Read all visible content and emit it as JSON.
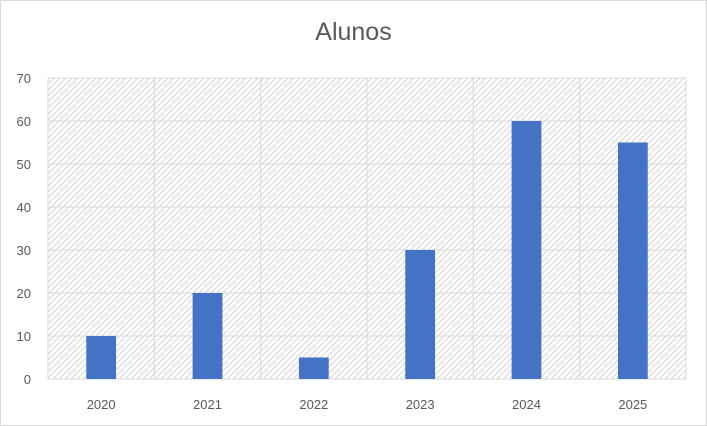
{
  "chart_data": {
    "type": "bar",
    "title": "Alunos",
    "xlabel": "",
    "ylabel": "",
    "categories": [
      "2020",
      "2021",
      "2022",
      "2023",
      "2024",
      "2025"
    ],
    "values": [
      10,
      20,
      5,
      30,
      60,
      55
    ],
    "ylim": [
      0,
      70
    ],
    "yticks": [
      0,
      10,
      20,
      30,
      40,
      50,
      60,
      70
    ],
    "grid": true,
    "legend": "none",
    "bar_color": "#4472c4",
    "grid_color": "#d9d9d9",
    "hatch_color": "#d4d4d4"
  }
}
